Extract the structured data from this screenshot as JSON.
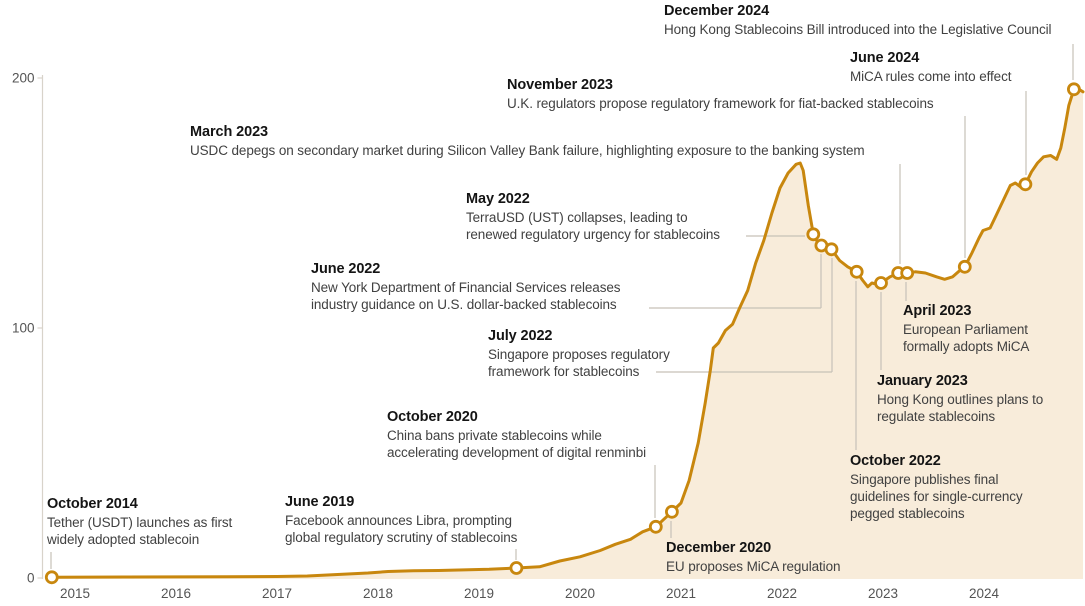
{
  "chart_data": {
    "type": "area",
    "description": "Stablecoin market capitalization timeline with regulatory milestone annotations",
    "x_axis": {
      "ticks": [
        2015,
        2016,
        2017,
        2018,
        2019,
        2020,
        2021,
        2022,
        2023,
        2024
      ]
    },
    "y_axis": {
      "ticks": [
        0,
        100,
        200
      ],
      "ylim": [
        0,
        210
      ]
    },
    "grid": false,
    "legend": false,
    "colors": {
      "line": "#C8870E",
      "fill": "#F8ECDA",
      "marker_fill": "#FFFFFF",
      "leader": "#C6C1B8",
      "axis": "#D8D3CA",
      "axis_text": "#545454"
    },
    "points": [
      [
        2014.77,
        0.3
      ],
      [
        2015.5,
        0.4
      ],
      [
        2016.5,
        0.5
      ],
      [
        2017.0,
        0.6
      ],
      [
        2017.3,
        0.8
      ],
      [
        2017.6,
        1.4
      ],
      [
        2017.9,
        2.0
      ],
      [
        2018.1,
        2.6
      ],
      [
        2018.35,
        2.9
      ],
      [
        2018.6,
        3.0
      ],
      [
        2018.9,
        3.3
      ],
      [
        2019.1,
        3.5
      ],
      [
        2019.37,
        4.0
      ],
      [
        2019.6,
        4.5
      ],
      [
        2019.8,
        6.8
      ],
      [
        2020.0,
        8.5
      ],
      [
        2020.2,
        11.0
      ],
      [
        2020.35,
        13.5
      ],
      [
        2020.5,
        15.5
      ],
      [
        2020.62,
        18.5
      ],
      [
        2020.75,
        20.5
      ],
      [
        2020.83,
        23.5
      ],
      [
        2020.91,
        26.5
      ],
      [
        2021.0,
        30
      ],
      [
        2021.08,
        39
      ],
      [
        2021.17,
        54
      ],
      [
        2021.24,
        70
      ],
      [
        2021.29,
        83
      ],
      [
        2021.32,
        92
      ],
      [
        2021.37,
        94
      ],
      [
        2021.44,
        99
      ],
      [
        2021.51,
        101.5
      ],
      [
        2021.58,
        108
      ],
      [
        2021.66,
        115
      ],
      [
        2021.74,
        126
      ],
      [
        2021.82,
        135
      ],
      [
        2021.9,
        146
      ],
      [
        2021.98,
        156
      ],
      [
        2022.06,
        162
      ],
      [
        2022.14,
        165.5
      ],
      [
        2022.18,
        166
      ],
      [
        2022.21,
        163
      ],
      [
        2022.26,
        149
      ],
      [
        2022.31,
        137.5
      ],
      [
        2022.35,
        134.5
      ],
      [
        2022.39,
        133
      ],
      [
        2022.44,
        132
      ],
      [
        2022.49,
        131.5
      ],
      [
        2022.57,
        127
      ],
      [
        2022.65,
        124.5
      ],
      [
        2022.74,
        122.5
      ],
      [
        2022.8,
        119
      ],
      [
        2022.85,
        116.5
      ],
      [
        2022.89,
        118
      ],
      [
        2022.94,
        117.5
      ],
      [
        2022.98,
        118
      ],
      [
        2023.07,
        120.5
      ],
      [
        2023.15,
        122
      ],
      [
        2023.2,
        122
      ],
      [
        2023.24,
        122
      ],
      [
        2023.32,
        122.5
      ],
      [
        2023.42,
        122
      ],
      [
        2023.53,
        120.5
      ],
      [
        2023.61,
        119.5
      ],
      [
        2023.69,
        120.5
      ],
      [
        2023.76,
        123
      ],
      [
        2023.81,
        124.5
      ],
      [
        2023.88,
        130
      ],
      [
        2023.95,
        136
      ],
      [
        2023.99,
        139
      ],
      [
        2024.06,
        140
      ],
      [
        2024.12,
        145
      ],
      [
        2024.19,
        151
      ],
      [
        2024.26,
        157
      ],
      [
        2024.31,
        158
      ],
      [
        2024.36,
        156.5
      ],
      [
        2024.41,
        157.5
      ],
      [
        2024.47,
        162.5
      ],
      [
        2024.53,
        166
      ],
      [
        2024.59,
        168.5
      ],
      [
        2024.66,
        169
      ],
      [
        2024.72,
        167.5
      ],
      [
        2024.76,
        172
      ],
      [
        2024.8,
        180
      ],
      [
        2024.84,
        189
      ],
      [
        2024.89,
        195.5
      ],
      [
        2024.94,
        195.5
      ],
      [
        2024.98,
        194.5
      ]
    ],
    "events": [
      {
        "date": "October 2014",
        "text": "Tether (USDT) launches as first\nwidely adopted stablecoin",
        "year": 2014.77,
        "value": 0.3
      },
      {
        "date": "June 2019",
        "text": "Facebook announces Libra, prompting\nglobal regulatory scrutiny of stablecoins",
        "year": 2019.37,
        "value": 4
      },
      {
        "date": "October 2020",
        "text": "China bans private stablecoins while\naccelerating development of digital renminbi",
        "year": 2020.75,
        "value": 20.5
      },
      {
        "date": "December 2020",
        "text": "EU proposes MiCA regulation",
        "year": 2020.91,
        "value": 26.5
      },
      {
        "date": "March 2023",
        "text": "USDC depegs on secondary market during Silicon Valley Bank failure, highlighting exposure to the banking system",
        "year": 2023.15,
        "value": 122
      },
      {
        "date": "May 2022",
        "text": "TerraUSD (UST) collapses, leading to\nrenewed regulatory urgency for stablecoins",
        "year": 2022.31,
        "value": 137.5
      },
      {
        "date": "June 2022",
        "text": "New York Department of Financial Services releases\nindustry guidance on U.S. dollar-backed stablecoins",
        "year": 2022.39,
        "value": 133
      },
      {
        "date": "July 2022",
        "text": "Singapore proposes regulatory\nframework for stablecoins",
        "year": 2022.49,
        "value": 131.5
      },
      {
        "date": "November 2023",
        "text": "U.K. regulators propose regulatory framework for fiat-backed stablecoins",
        "year": 2023.81,
        "value": 124.5
      },
      {
        "date": "October 2022",
        "text": "Singapore publishes final\nguidelines for single-currency\npegged stablecoins",
        "year": 2022.74,
        "value": 122.5
      },
      {
        "date": "January 2023",
        "text": "Hong Kong outlines plans to\nregulate stablecoins",
        "year": 2022.98,
        "value": 118
      },
      {
        "date": "April 2023",
        "text": "European Parliament\nformally adopts MiCA",
        "year": 2023.24,
        "value": 122
      },
      {
        "date": "June 2024",
        "text": "MiCA rules come into effect",
        "year": 2024.41,
        "value": 157.5
      },
      {
        "date": "December 2024",
        "text": "Hong Kong Stablecoins Bill introduced into the Legislative Council",
        "year": 2024.89,
        "value": 195.5
      }
    ]
  }
}
